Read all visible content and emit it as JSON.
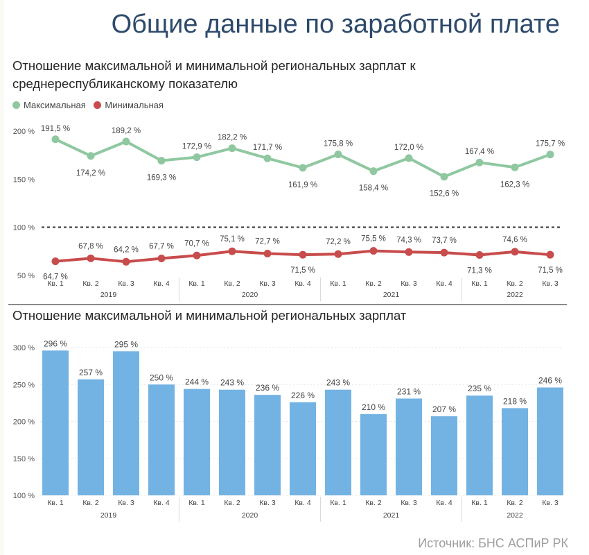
{
  "page_title": "Общие данные по заработной плате",
  "source": "Источник: БНС АСПиР РК",
  "colors": {
    "max": "#8fc8a0",
    "min": "#c84c4c",
    "bar": "#73b3e3",
    "reference": "#555555"
  },
  "chart_data": [
    {
      "type": "line",
      "title": "Отношение максимальной и минимальной региональных зарплат к среднереспубликанскому показателю",
      "legend_position": "top-left",
      "categories": [
        "Кв. 1",
        "Кв. 2",
        "Кв. 3",
        "Кв. 4",
        "Кв. 1",
        "Кв. 2",
        "Кв. 3",
        "Кв. 4",
        "Кв. 1",
        "Кв. 2",
        "Кв. 3",
        "Кв. 4",
        "Кв. 1",
        "Кв. 2",
        "Кв. 3"
      ],
      "years": [
        {
          "label": "2019",
          "count": 4
        },
        {
          "label": "2020",
          "count": 4
        },
        {
          "label": "2021",
          "count": 4
        },
        {
          "label": "2022",
          "count": 3
        }
      ],
      "y_ticks": [
        "200 %",
        "150 %",
        "100 %",
        "50 %"
      ],
      "ylim": [
        50,
        200
      ],
      "reference_line": 100,
      "series": [
        {
          "name": "Максимальная",
          "values": [
            191.5,
            174.2,
            189.2,
            169.3,
            172.9,
            182.2,
            171.7,
            161.9,
            175.8,
            158.4,
            172.0,
            152.6,
            167.4,
            162.3,
            175.7
          ],
          "labels": [
            "191,5 %",
            "174,2 %",
            "189,2 %",
            "169,3 %",
            "172,9 %",
            "182,2 %",
            "171,7 %",
            "161,9 %",
            "175,8 %",
            "158,4 %",
            "172,0 %",
            "152,6 %",
            "167,4 %",
            "162,3 %",
            "175,7 %"
          ]
        },
        {
          "name": "Минимальная",
          "values": [
            64.7,
            67.8,
            64.2,
            67.7,
            70.7,
            75.1,
            72.7,
            71.5,
            72.2,
            75.5,
            74.3,
            73.7,
            71.3,
            74.6,
            71.5
          ],
          "labels": [
            "64,7 %",
            "67,8 %",
            "64,2 %",
            "67,7 %",
            "70,7 %",
            "75,1 %",
            "72,7 %",
            "71,5 %",
            "72,2 %",
            "75,5 %",
            "74,3 %",
            "73,7 %",
            "71,3 %",
            "74,6 %",
            "71,5 %"
          ]
        }
      ]
    },
    {
      "type": "bar",
      "title": "Отношение максимальной и минимальной региональных зарплат",
      "categories": [
        "Кв. 1",
        "Кв. 2",
        "Кв. 3",
        "Кв. 4",
        "Кв. 1",
        "Кв. 2",
        "Кв. 3",
        "Кв. 4",
        "Кв. 1",
        "Кв. 2",
        "Кв. 3",
        "Кв. 4",
        "Кв. 1",
        "Кв. 2",
        "Кв. 3"
      ],
      "years": [
        {
          "label": "2019",
          "count": 4
        },
        {
          "label": "2020",
          "count": 4
        },
        {
          "label": "2021",
          "count": 4
        },
        {
          "label": "2022",
          "count": 3
        }
      ],
      "y_ticks": [
        "300 %",
        "250 %",
        "200 %",
        "150 %",
        "100 %"
      ],
      "ylim": [
        100,
        300
      ],
      "values": [
        296,
        257,
        295,
        250,
        244,
        243,
        236,
        226,
        243,
        210,
        231,
        207,
        235,
        218,
        246
      ],
      "labels": [
        "296 %",
        "257 %",
        "295 %",
        "250 %",
        "244 %",
        "243 %",
        "236 %",
        "226 %",
        "243 %",
        "210 %",
        "231 %",
        "207 %",
        "235 %",
        "218 %",
        "246 %"
      ]
    }
  ]
}
